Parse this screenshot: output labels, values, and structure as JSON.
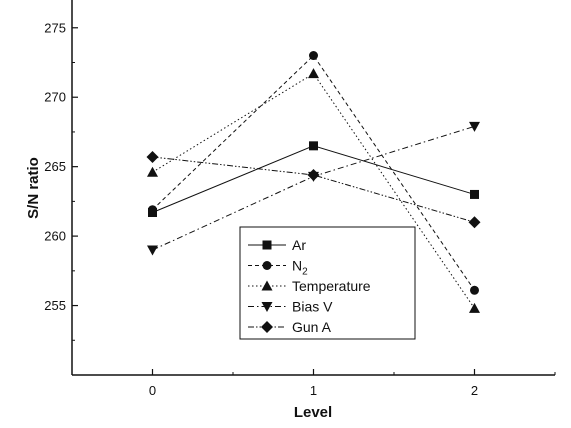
{
  "chart_data": {
    "type": "line",
    "title": "",
    "xlabel": "Level",
    "ylabel": "S/N ratio",
    "x": [
      0,
      1,
      2
    ],
    "x_tick_labels": [
      "0",
      "1",
      "2"
    ],
    "xlim": [
      -0.5,
      2.5
    ],
    "ylim": [
      250,
      277
    ],
    "y_ticks": [
      255,
      260,
      265,
      270,
      275
    ],
    "y_tick_labels": [
      "255",
      "260",
      "265",
      "270",
      "275"
    ],
    "grid": false,
    "legend_position": "lower-right",
    "series": [
      {
        "name": "Ar",
        "subscript": "",
        "values": [
          261.7,
          266.5,
          263.0
        ],
        "marker": "square",
        "dash": "solid"
      },
      {
        "name": "N",
        "subscript": "2",
        "values": [
          261.9,
          273.0,
          256.1
        ],
        "marker": "circle",
        "dash": "dash"
      },
      {
        "name": "Temperature",
        "subscript": "",
        "values": [
          264.6,
          271.7,
          254.8
        ],
        "marker": "triangle-up",
        "dash": "dot"
      },
      {
        "name": "Bias V",
        "subscript": "",
        "values": [
          259.0,
          264.3,
          267.9
        ],
        "marker": "triangle-down",
        "dash": "dashdot"
      },
      {
        "name": "Gun A",
        "subscript": "",
        "values": [
          265.7,
          264.4,
          261.0
        ],
        "marker": "diamond",
        "dash": "dashdotdot"
      }
    ]
  }
}
